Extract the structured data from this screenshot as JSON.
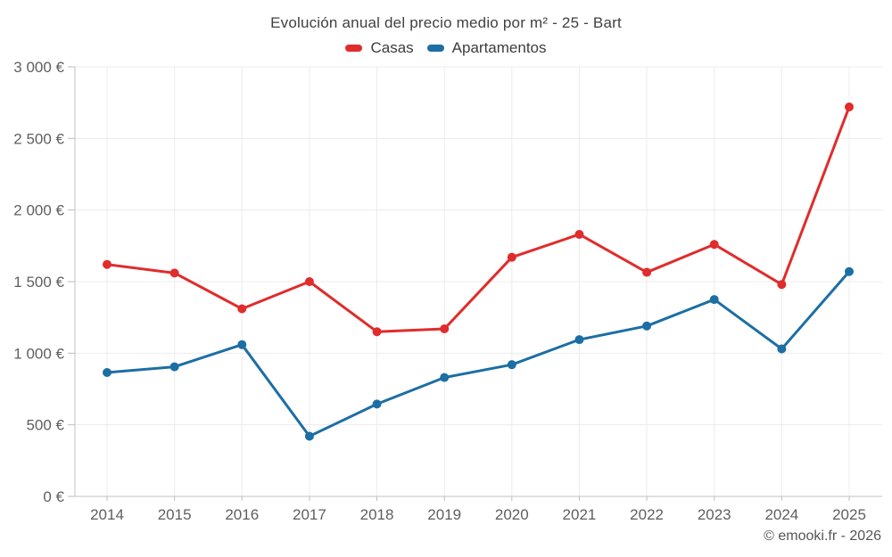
{
  "header": {
    "title": "Evolución anual del precio medio por m² - 25 - Bart"
  },
  "legend": {
    "items": [
      {
        "label": "Casas",
        "color": "#e02c2c"
      },
      {
        "label": "Apartamentos",
        "color": "#1c6ea4"
      }
    ]
  },
  "footer": {
    "watermark": "© emooki.fr - 2026"
  },
  "chart_data": {
    "type": "line",
    "title": "Evolución anual del precio medio por m² - 25 - Bart",
    "x": [
      2014,
      2015,
      2016,
      2017,
      2018,
      2019,
      2020,
      2021,
      2022,
      2023,
      2024,
      2025
    ],
    "series": [
      {
        "name": "Casas",
        "color": "#e02c2c",
        "values": [
          1620,
          1560,
          1310,
          1500,
          1150,
          1170,
          1670,
          1830,
          1565,
          1760,
          1480,
          2720
        ]
      },
      {
        "name": "Apartamentos",
        "color": "#1c6ea4",
        "values": [
          865,
          905,
          1060,
          420,
          645,
          830,
          920,
          1095,
          1190,
          1375,
          1030,
          1570
        ]
      }
    ],
    "xlabel": "",
    "ylabel": "",
    "ylim": [
      0,
      3000
    ],
    "y_ticks": [
      0,
      500,
      1000,
      1500,
      2000,
      2500,
      3000
    ],
    "y_tick_labels": [
      "0 €",
      "500 €",
      "1 000 €",
      "1 500 €",
      "2 000 €",
      "2 500 €",
      "3 000 €"
    ],
    "grid": true,
    "legend_position": "top",
    "currency": "€"
  }
}
